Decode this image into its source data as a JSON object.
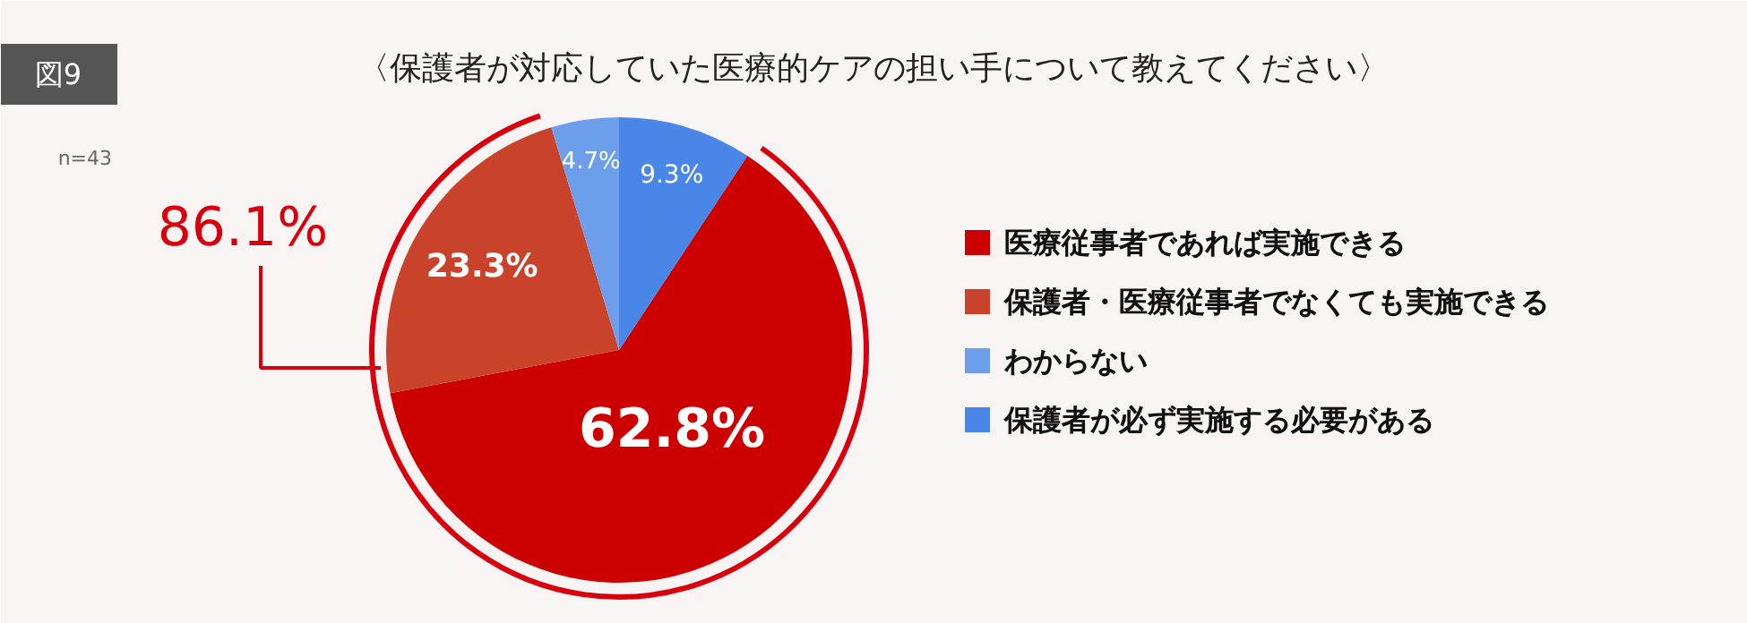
{
  "chart_data": {
    "type": "pie",
    "title": "〈保護者が対応していた医療的ケアの担い手について教えてください〉",
    "subtitle": "n=43",
    "categories": [
      "医療従事者であれば実施できる",
      "保護者・医療従事者でなくても実施できる",
      "わからない",
      "保護者が必ず実施する必要がある"
    ],
    "values": [
      62.8,
      23.3,
      4.7,
      9.3
    ],
    "colors": [
      "#cc0000",
      "#c9432b",
      "#6d9eeb",
      "#4a86e8"
    ],
    "value_labels": [
      "62.8%",
      "23.3%",
      "4.7%",
      "9.3%"
    ],
    "annotations": [
      "図9",
      "86.1%"
    ],
    "legend": "right"
  }
}
